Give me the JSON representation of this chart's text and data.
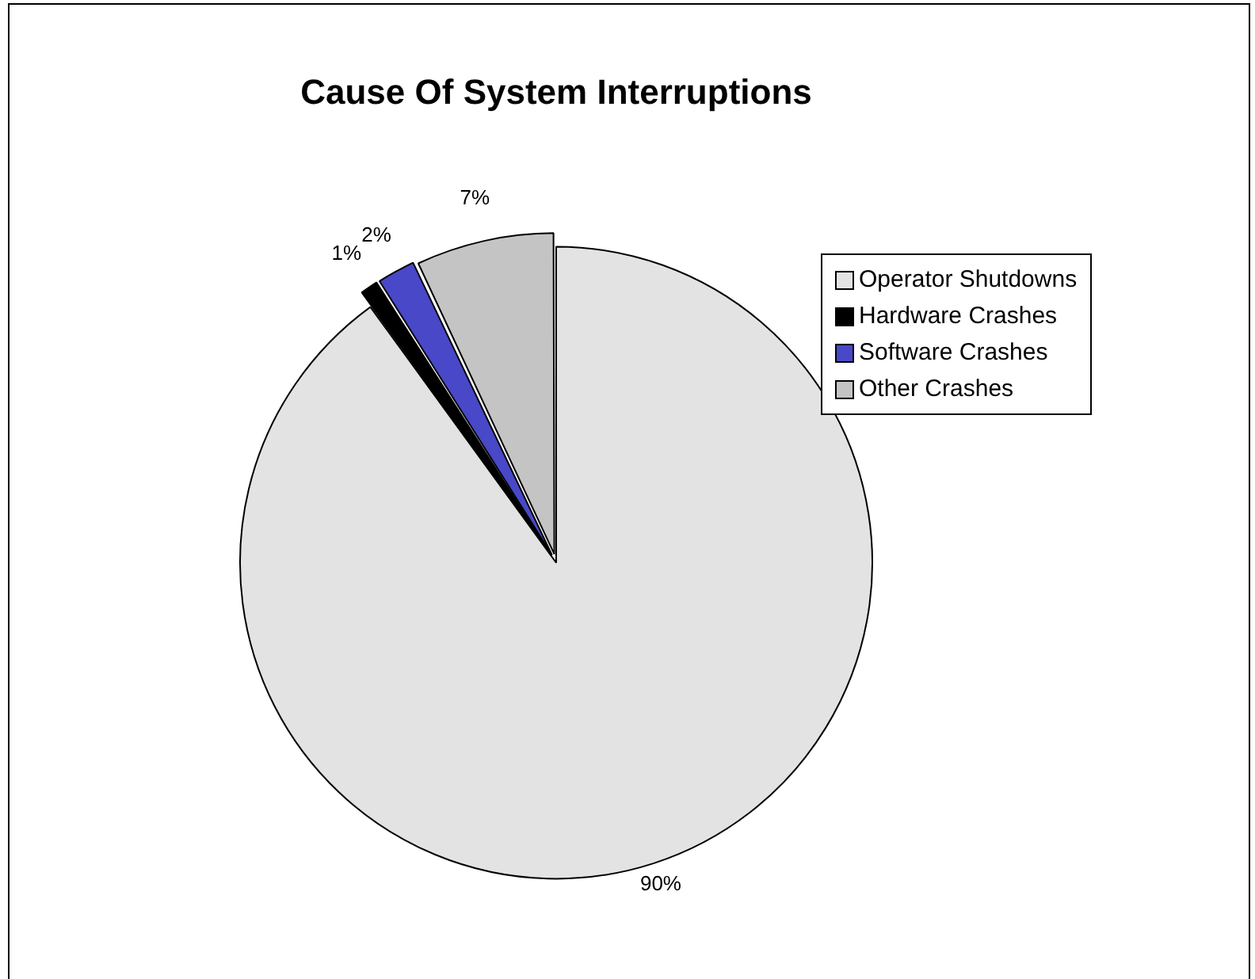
{
  "chart_data": {
    "type": "pie",
    "title": "Cause Of System Interruptions",
    "categories": [
      "Operator Shutdowns",
      "Hardware Crashes",
      "Software Crashes",
      "Other Crashes"
    ],
    "values": [
      90,
      1,
      2,
      7
    ],
    "colors": [
      "#e3e3e3",
      "#000000",
      "#4848c8",
      "#c4c4c4"
    ],
    "value_labels": [
      "90%",
      "1%",
      "2%",
      "7%"
    ],
    "legend": "right"
  }
}
